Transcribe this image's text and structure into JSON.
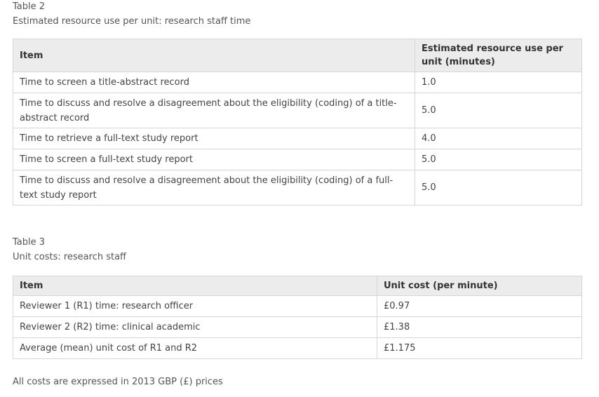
{
  "table2": {
    "label": "Table 2",
    "title": "Estimated resource use per unit: research staff time",
    "headers": [
      "Item",
      "Estimated resource use per unit (minutes)"
    ],
    "rows": [
      {
        "item": "Time to screen a title-abstract record",
        "value": "1.0"
      },
      {
        "item": "Time to discuss and resolve a disagreement about the eligibility (coding) of a title-abstract record",
        "value": "5.0"
      },
      {
        "item": "Time to retrieve a full-text study report",
        "value": "4.0"
      },
      {
        "item": "Time to screen a full-text study report",
        "value": "5.0"
      },
      {
        "item": "Time to discuss and resolve a disagreement about the eligibility (coding) of a full-text study report",
        "value": "5.0"
      }
    ]
  },
  "table3": {
    "label": "Table 3",
    "title": "Unit costs: research staff",
    "headers": [
      "Item",
      "Unit cost (per minute)"
    ],
    "rows": [
      {
        "item": "Reviewer 1 (R1) time: research officer",
        "value": "£0.97"
      },
      {
        "item": "Reviewer 2 (R2) time: clinical academic",
        "value": "£1.38"
      },
      {
        "item": "Average (mean) unit cost of R1 and R2",
        "value": "£1.175"
      }
    ]
  },
  "footnote": "All costs are expressed in 2013 GBP (£) prices"
}
